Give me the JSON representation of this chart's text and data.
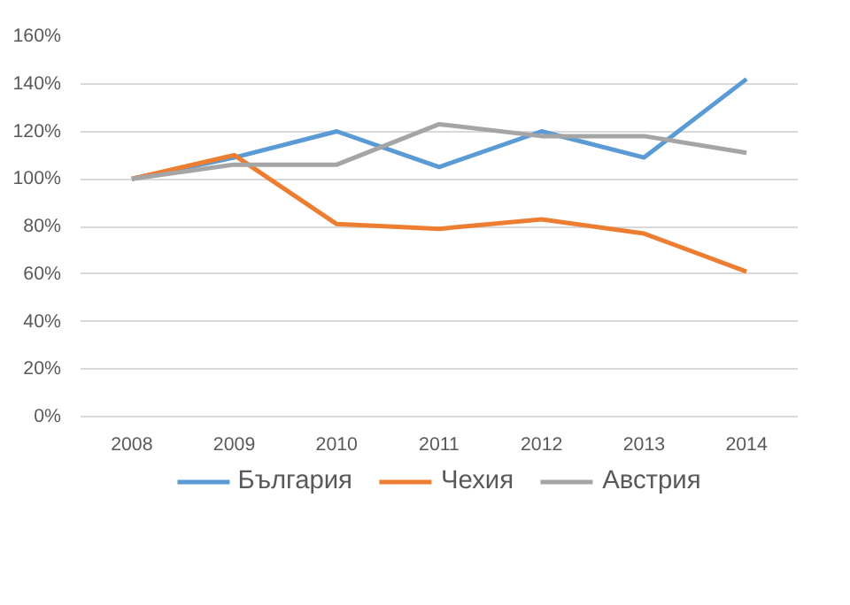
{
  "chart_data": {
    "type": "line",
    "categories": [
      "2008",
      "2009",
      "2010",
      "2011",
      "2012",
      "2013",
      "2014"
    ],
    "series": [
      {
        "name": "България",
        "color": "#5b9bd5",
        "values": [
          100,
          109,
          120,
          105,
          120,
          109,
          142
        ]
      },
      {
        "name": "Чехия",
        "color": "#ed7d31",
        "values": [
          100,
          110,
          81,
          79,
          83,
          77,
          61
        ]
      },
      {
        "name": "Австрия",
        "color": "#a5a5a5",
        "values": [
          100,
          106,
          106,
          123,
          118,
          118,
          111
        ]
      }
    ],
    "ylim": [
      0,
      160
    ],
    "yticks": [
      {
        "value": 0,
        "label": "0%"
      },
      {
        "value": 20,
        "label": "20%"
      },
      {
        "value": 40,
        "label": "40%"
      },
      {
        "value": 60,
        "label": "60%"
      },
      {
        "value": 80,
        "label": "80%"
      },
      {
        "value": 100,
        "label": "100%"
      },
      {
        "value": 120,
        "label": "120%"
      },
      {
        "value": 140,
        "label": "140%"
      },
      {
        "value": 160,
        "label": "160%"
      }
    ],
    "grid": "y",
    "legend": "bottom",
    "marker": "none",
    "line_style": "solid"
  }
}
